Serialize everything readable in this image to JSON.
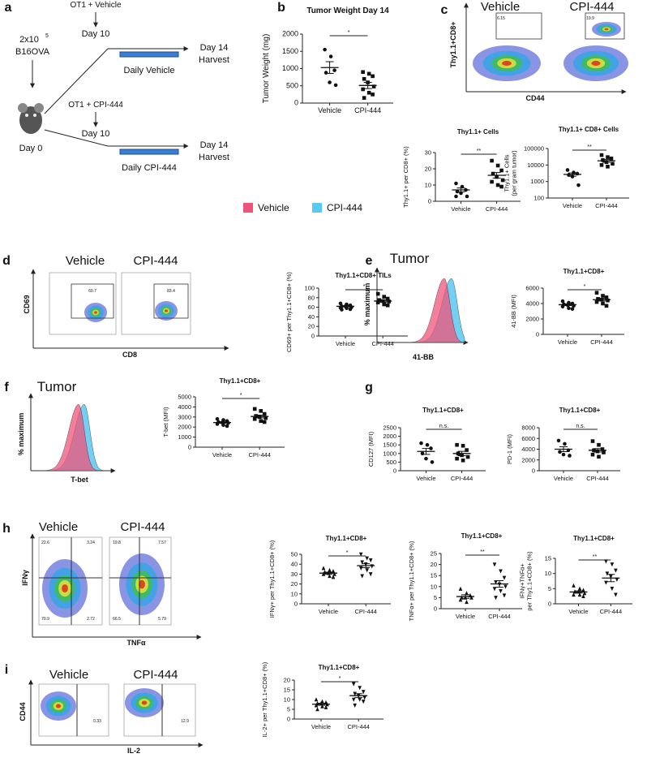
{
  "panel_labels": [
    "a",
    "b",
    "c",
    "d",
    "e",
    "f",
    "g",
    "h",
    "i"
  ],
  "schematic": {
    "cells": "2x10",
    "exponent": "5",
    "tumor": "B16OVA",
    "start": "Day 0",
    "arms": [
      {
        "group": "OT1 + Vehicle",
        "day_start": "Day 10",
        "day_end": "Day 14",
        "harvest": "Harvest",
        "treatment": "Daily Vehicle",
        "color": "#33cc33"
      },
      {
        "group": "OT1 + CPI-444",
        "day_start": "Day 10",
        "day_end": "Day 14",
        "harvest": "Harvest",
        "treatment": "Daily CPI-444",
        "color": "#e8281e"
      }
    ]
  },
  "legend": {
    "items": [
      {
        "name": "Vehicle",
        "color": "#f0547a"
      },
      {
        "name": "CPI-444",
        "color": "#5bc8f0"
      }
    ]
  },
  "flow_plots": [
    {
      "titles": [
        "Vehicle",
        "CPI-444"
      ],
      "xlabel": "CD44",
      "ylabel": "Thy1.1+CD8+",
      "gates": [
        [
          "6.15"
        ],
        [
          "19.9"
        ]
      ]
    },
    {
      "titles": [
        "Vehicle",
        "CPI-444"
      ],
      "xlabel": "CD8",
      "ylabel": "CD69",
      "gates": [
        [
          "60.7"
        ],
        [
          "83.4"
        ]
      ]
    },
    {
      "titles": [
        "Vehicle",
        "CPI-444"
      ],
      "xlabel": "TNFα",
      "ylabel": "IFNγ",
      "gates": [
        [
          "22.6",
          "3.24",
          "70.9",
          "2.72"
        ],
        [
          "19.8",
          "7.57",
          "66.5",
          "5.79"
        ]
      ]
    },
    {
      "titles": [
        "Vehicle",
        "CPI-444"
      ],
      "xlabel": "IL-2",
      "ylabel": "CD44",
      "gates": [
        [
          "0.33"
        ],
        [
          "12.9"
        ]
      ]
    }
  ],
  "histograms": [
    {
      "title": "Tumor",
      "ylabel": "% maximum",
      "xlabel": "41-BB"
    },
    {
      "title": "Tumor",
      "ylabel": "% maximum",
      "xlabel": "T-bet"
    }
  ],
  "chart_data": [
    {
      "type": "dotplot",
      "title": "Tumor Weight Day 14",
      "ylabel": [
        "Tumor Weight (mg)"
      ],
      "categories": [
        "Vehicle",
        "CPI-444"
      ],
      "groups": [
        {
          "marker": "circle",
          "values": [
            1550,
            1350,
            950,
            880,
            600,
            520
          ],
          "mean": 1030,
          "sem": 170
        },
        {
          "marker": "square",
          "values": [
            900,
            850,
            780,
            700,
            600,
            480,
            400,
            300,
            250,
            150
          ],
          "mean": 510,
          "sem": 90
        }
      ],
      "ylim": [
        0,
        2000
      ],
      "yticks": [
        0,
        500,
        1000,
        1500,
        2000
      ],
      "significance": "*"
    },
    {
      "type": "dotplot",
      "title": "Thy1.1+ Cells",
      "ylabel": [
        "Thy1.1+ per CD8+ (%)"
      ],
      "categories": [
        "Vehicle",
        "CPI-444"
      ],
      "groups": [
        {
          "marker": "circle",
          "values": [
            11,
            9,
            7,
            6,
            5,
            3,
            3
          ],
          "mean": 7,
          "sem": 1.2
        },
        {
          "marker": "square",
          "values": [
            25,
            22,
            19,
            17,
            15,
            13,
            12,
            10,
            9
          ],
          "mean": 16,
          "sem": 1.7
        }
      ],
      "ylim": [
        0,
        30
      ],
      "yticks": [
        0,
        10,
        20,
        30
      ],
      "significance": "**"
    },
    {
      "type": "dotplot",
      "title": "Thy1.1+ CD8+ Cells",
      "ylabel": [
        "Thy1.1+ Cells",
        "(per gram tumor)"
      ],
      "categories": [
        "Vehicle",
        "CPI-444"
      ],
      "groups": [
        {
          "marker": "circle",
          "values": [
            5000,
            3500,
            3000,
            2500,
            2000,
            600
          ],
          "mean": 2700,
          "sem": 600
        },
        {
          "marker": "square",
          "values": [
            40000,
            30000,
            25000,
            20000,
            15000,
            12000,
            10000,
            8000
          ],
          "mean": 18000,
          "sem": 3500
        }
      ],
      "ylim": [
        100,
        100000
      ],
      "yticks": [
        100,
        1000,
        10000,
        100000
      ],
      "log": true,
      "significance": "**"
    },
    {
      "type": "dotplot",
      "title": "Thy1.1+CD8+ TILs",
      "ylabel": [
        "CD69+ per Thy1.1+CD8+ (%)"
      ],
      "categories": [
        "Vehicle",
        "CPI-444"
      ],
      "groups": [
        {
          "marker": "circle",
          "values": [
            68,
            66,
            64,
            62,
            62,
            60,
            59,
            58,
            56,
            55
          ],
          "mean": 62,
          "sem": 1.3
        },
        {
          "marker": "square",
          "values": [
            88,
            82,
            78,
            75,
            73,
            72,
            70,
            66,
            64
          ],
          "mean": 73,
          "sem": 2.5
        }
      ],
      "ylim": [
        0,
        100
      ],
      "yticks": [
        0,
        20,
        40,
        60,
        80,
        100
      ],
      "significance": "*"
    },
    {
      "type": "dotplot",
      "title": "Thy1.1+CD8+",
      "ylabel": [
        "41-BB (MFI)"
      ],
      "categories": [
        "Vehicle",
        "CPI-444"
      ],
      "groups": [
        {
          "marker": "circle",
          "values": [
            4300,
            4100,
            4000,
            3900,
            3800,
            3700,
            3600,
            3400,
            3300
          ],
          "mean": 3850,
          "sem": 110
        },
        {
          "marker": "square",
          "values": [
            5400,
            5000,
            4800,
            4600,
            4500,
            4400,
            4200,
            4000,
            3700
          ],
          "mean": 4500,
          "sem": 170
        }
      ],
      "ylim": [
        0,
        6000
      ],
      "yticks": [
        0,
        2000,
        4000,
        6000
      ],
      "significance": "*"
    },
    {
      "type": "dotplot",
      "title": "Thy1.1+CD8+",
      "ylabel": [
        "T-bet (MFI)"
      ],
      "categories": [
        "Vehicle",
        "CPI-444"
      ],
      "groups": [
        {
          "marker": "circle",
          "values": [
            2800,
            2700,
            2600,
            2500,
            2450,
            2400,
            2300,
            2200,
            2100
          ],
          "mean": 2450,
          "sem": 75
        },
        {
          "marker": "square",
          "values": [
            3800,
            3600,
            3300,
            3100,
            3000,
            2900,
            2800,
            2600,
            2500
          ],
          "mean": 3050,
          "sem": 140
        }
      ],
      "ylim": [
        0,
        5000
      ],
      "yticks": [
        0,
        1000,
        2000,
        3000,
        4000,
        5000
      ],
      "significance": "*"
    },
    {
      "type": "dotplot",
      "title": "Thy1.1+CD8+",
      "ylabel": [
        "CD127 (MFI)"
      ],
      "categories": [
        "Vehicle",
        "CPI-444"
      ],
      "groups": [
        {
          "marker": "circle",
          "values": [
            1600,
            1500,
            1300,
            1000,
            700,
            500
          ],
          "mean": 1120,
          "sem": 170
        },
        {
          "marker": "square",
          "values": [
            1500,
            1450,
            1200,
            1000,
            900,
            800,
            700,
            600
          ],
          "mean": 1000,
          "sem": 125
        }
      ],
      "ylim": [
        0,
        2500
      ],
      "yticks": [
        0,
        500,
        1000,
        1500,
        2000,
        2500
      ],
      "significance": "n.s."
    },
    {
      "type": "dotplot",
      "title": "Thy1.1+CD8+",
      "ylabel": [
        "PD-1 (MFI)"
      ],
      "categories": [
        "Vehicle",
        "CPI-444"
      ],
      "groups": [
        {
          "marker": "circle",
          "values": [
            5600,
            5000,
            3800,
            3500,
            3000,
            2800
          ],
          "mean": 4000,
          "sem": 450
        },
        {
          "marker": "square",
          "values": [
            5500,
            4800,
            4000,
            3800,
            3600,
            3400,
            3000,
            2600
          ],
          "mean": 3800,
          "sem": 320
        }
      ],
      "ylim": [
        0,
        8000
      ],
      "yticks": [
        0,
        2000,
        4000,
        6000,
        8000
      ],
      "significance": "n.s."
    },
    {
      "type": "dotplot",
      "title": "Thy1.1+CD8+",
      "ylabel": [
        "IFNγ+ per Thy1.1+CD8+ (%)"
      ],
      "categories": [
        "Vehicle",
        "CPI-444"
      ],
      "groups": [
        {
          "marker": "triangle",
          "values": [
            36,
            34,
            33,
            32,
            31,
            30,
            30,
            28,
            27
          ],
          "mean": 31,
          "sem": 1
        },
        {
          "marker": "invtriangle",
          "values": [
            50,
            46,
            44,
            42,
            40,
            38,
            36,
            34,
            30,
            28
          ],
          "mean": 38.5,
          "sem": 2
        }
      ],
      "ylim": [
        0,
        50
      ],
      "yticks": [
        0,
        10,
        20,
        30,
        40,
        50
      ],
      "significance": "*"
    },
    {
      "type": "dotplot",
      "title": "Thy1.1+CD8+",
      "ylabel": [
        "TNFα+ per Thy1.1+CD8+ (%)"
      ],
      "categories": [
        "Vehicle",
        "CPI-444"
      ],
      "groups": [
        {
          "marker": "triangle",
          "values": [
            9,
            7,
            6,
            5,
            5,
            5,
            4,
            3
          ],
          "mean": 5.5,
          "sem": 0.8
        },
        {
          "marker": "invtriangle",
          "values": [
            20,
            17,
            14,
            12,
            11,
            10,
            9,
            8,
            6,
            5
          ],
          "mean": 11.2,
          "sem": 1.5
        }
      ],
      "ylim": [
        0,
        25
      ],
      "yticks": [
        0,
        5,
        10,
        15,
        20,
        25
      ],
      "significance": "**"
    },
    {
      "type": "dotplot",
      "title": "Thy1.1+CD8+",
      "ylabel": [
        "IFNγ+TNFα+",
        "per Thy1.1+CD8+ (%)"
      ],
      "categories": [
        "Vehicle",
        "CPI-444"
      ],
      "groups": [
        {
          "marker": "triangle",
          "values": [
            6,
            5,
            4.5,
            4,
            4,
            3.5,
            3,
            3,
            2.5
          ],
          "mean": 3.9,
          "sem": 0.35
        },
        {
          "marker": "invtriangle",
          "values": [
            14,
            13,
            11,
            10,
            9,
            8,
            7,
            5,
            3
          ],
          "mean": 8.5,
          "sem": 1.2
        }
      ],
      "ylim": [
        0,
        15
      ],
      "yticks": [
        0,
        5,
        10,
        15
      ],
      "significance": "**"
    },
    {
      "type": "dotplot",
      "title": "Thy1.1+CD8+",
      "ylabel": [
        "IL-2+ per Thy1.1+CD8+ (%)"
      ],
      "categories": [
        "Vehicle",
        "CPI-444"
      ],
      "groups": [
        {
          "marker": "triangle",
          "values": [
            10,
            9,
            8.5,
            8,
            8,
            7.5,
            7,
            6.5,
            6,
            5
          ],
          "mean": 7.6,
          "sem": 0.5
        },
        {
          "marker": "invtriangle",
          "values": [
            18,
            16,
            14,
            13,
            12,
            11,
            10,
            10,
            9,
            7
          ],
          "mean": 12,
          "sem": 1
        }
      ],
      "ylim": [
        0,
        20
      ],
      "yticks": [
        0,
        5,
        10,
        15,
        20
      ],
      "significance": "*"
    }
  ]
}
